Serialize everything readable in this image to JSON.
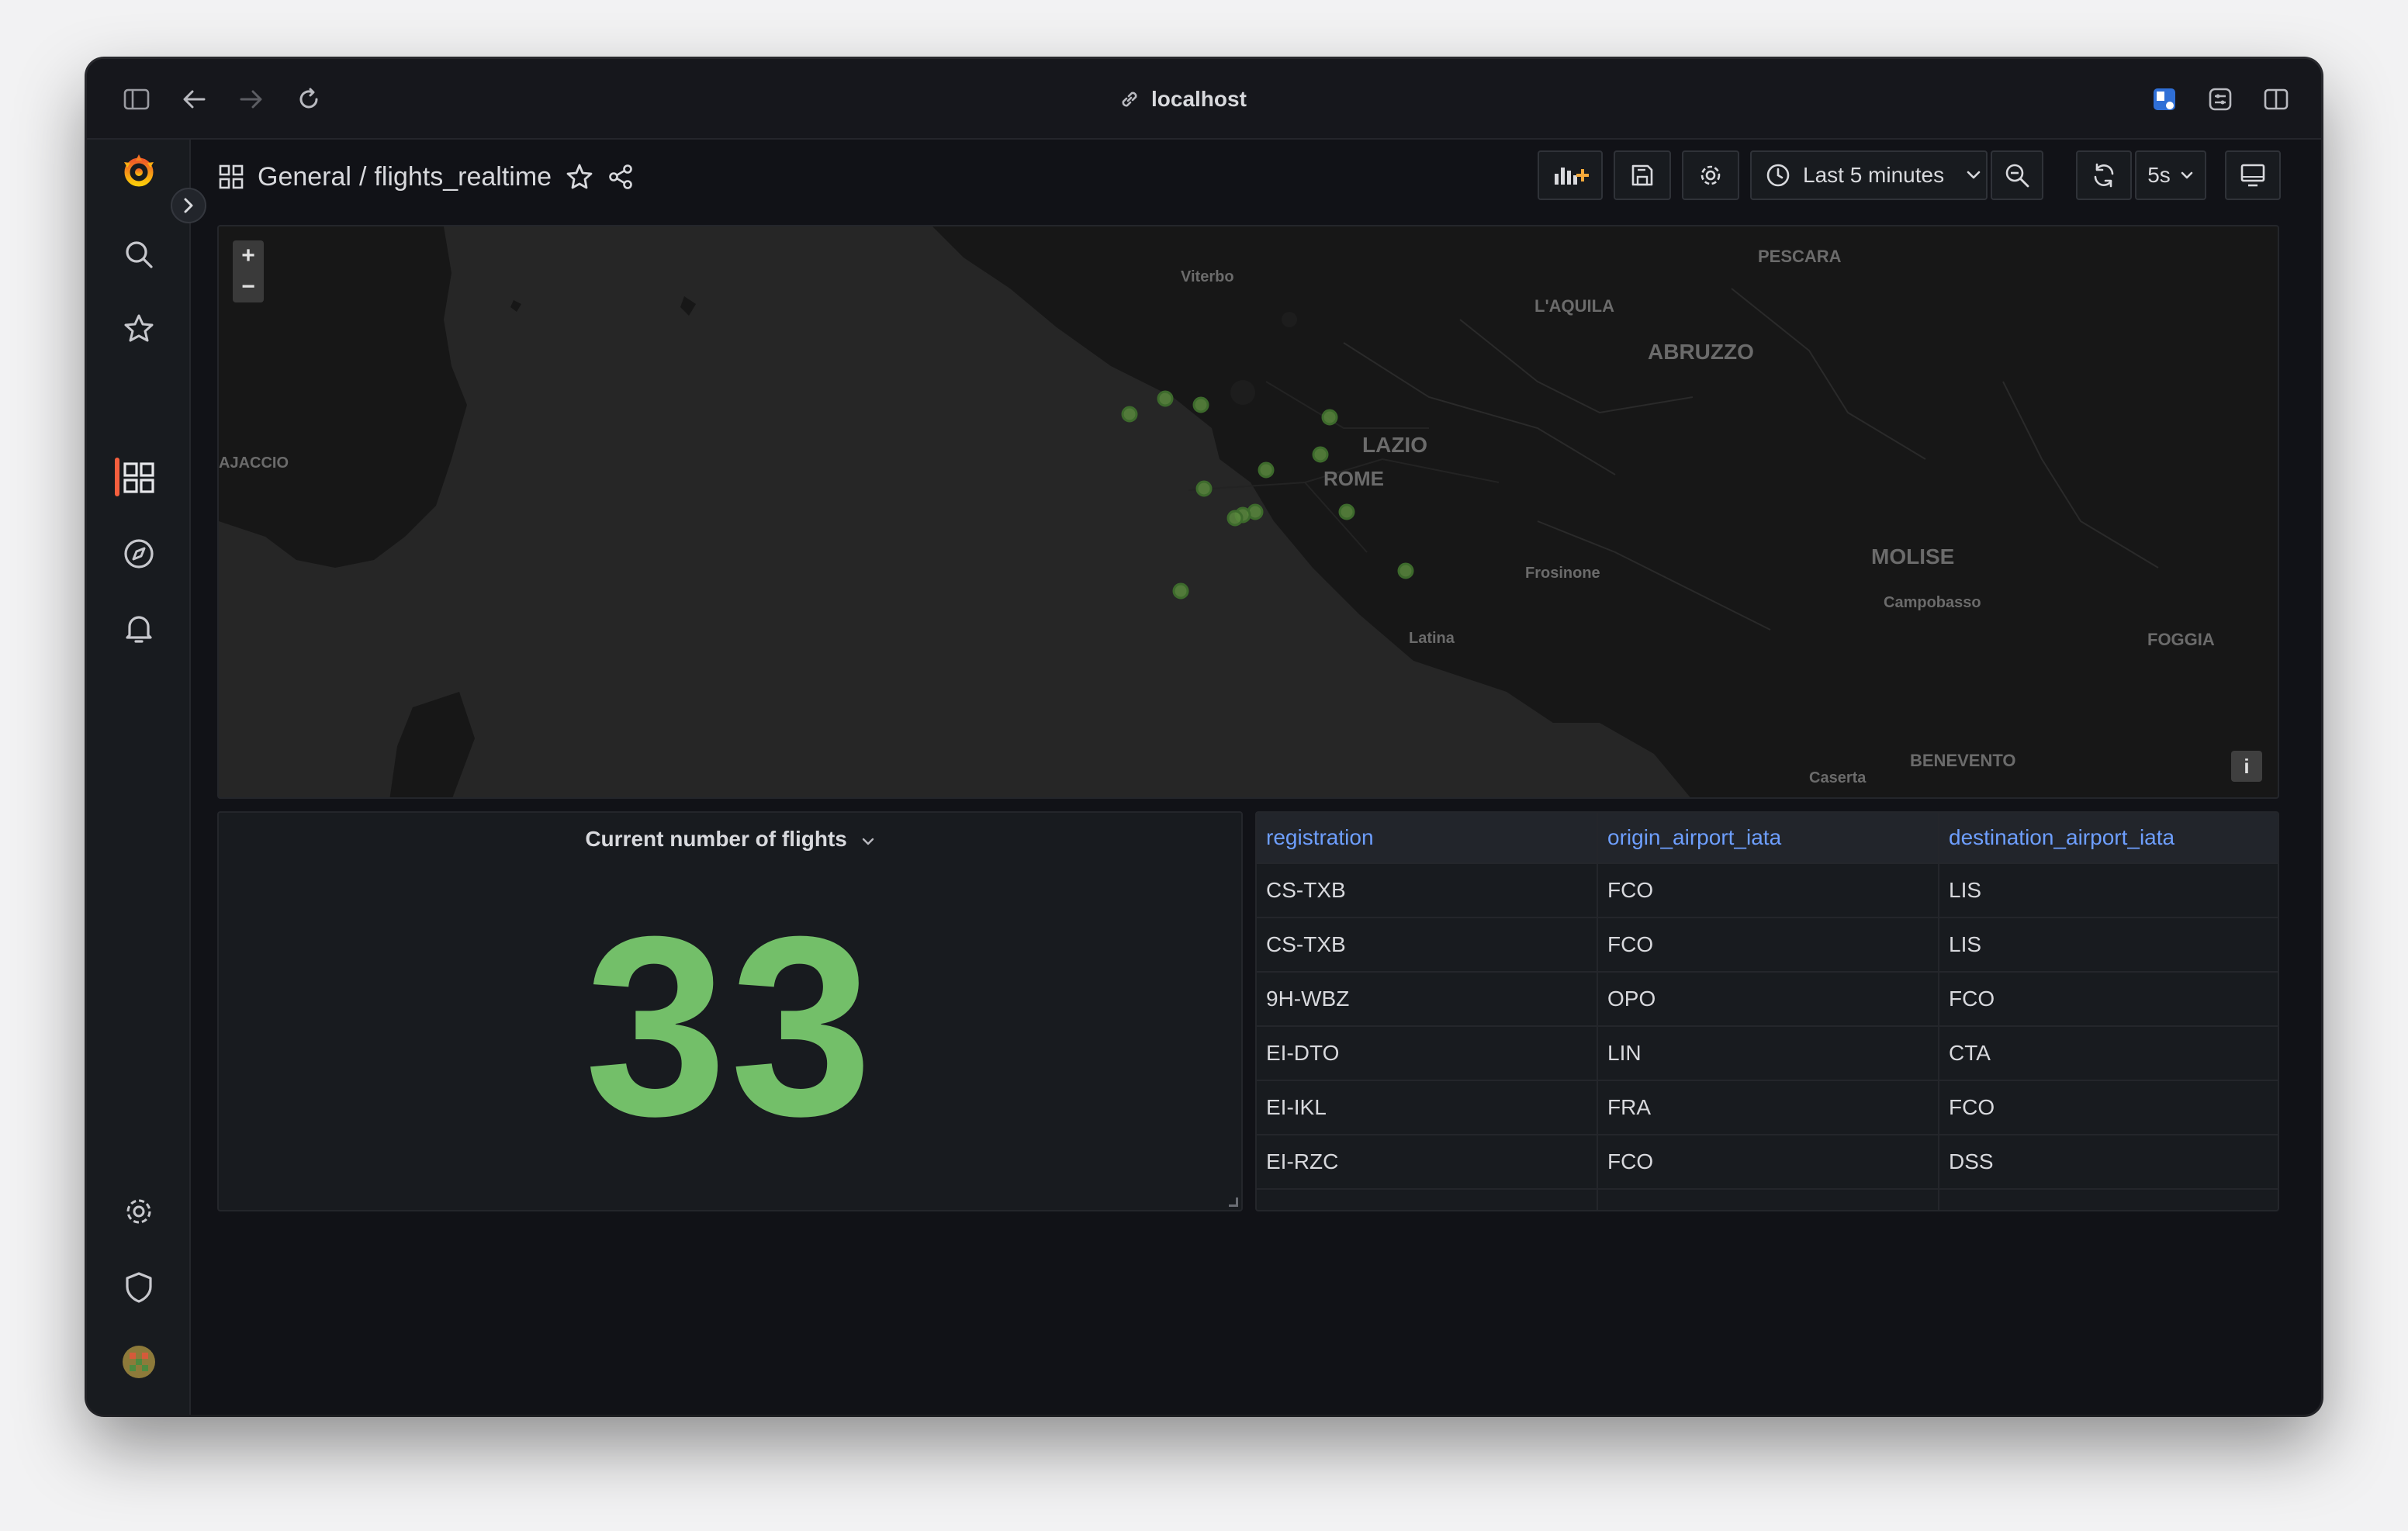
{
  "browser": {
    "url": "localhost"
  },
  "header": {
    "folder": "General",
    "separator": "/",
    "dashboard_title": "flights_realtime",
    "time_range": "Last 5 minutes",
    "refresh_interval": "5s"
  },
  "map": {
    "zoom_in": "+",
    "zoom_out": "−",
    "info": "i",
    "labels": {
      "viterbo": "Viterbo",
      "laquila": "L'AQUILA",
      "pescara": "PESCARA",
      "abruzzo": "ABRUZZO",
      "lazio": "LAZIO",
      "rome": "ROME",
      "ajaccio": "AJACCIO",
      "frosinone": "Frosinone",
      "molise": "MOLISE",
      "campobasso": "Campobasso",
      "latina": "Latina",
      "foggia": "FOGGIA",
      "benevento": "BENEVENTO",
      "caserta": "Caserta"
    },
    "point_color": "#73bf69"
  },
  "stat": {
    "title": "Current number of flights",
    "value": "33",
    "color": "#73bf69"
  },
  "table": {
    "columns": [
      "registration",
      "origin_airport_iata",
      "destination_airport_iata"
    ],
    "rows": [
      [
        "CS-TXB",
        "FCO",
        "LIS"
      ],
      [
        "CS-TXB",
        "FCO",
        "LIS"
      ],
      [
        "9H-WBZ",
        "OPO",
        "FCO"
      ],
      [
        "EI-DTO",
        "LIN",
        "CTA"
      ],
      [
        "EI-IKL",
        "FRA",
        "FCO"
      ],
      [
        "EI-RZC",
        "FCO",
        "DSS"
      ]
    ]
  }
}
